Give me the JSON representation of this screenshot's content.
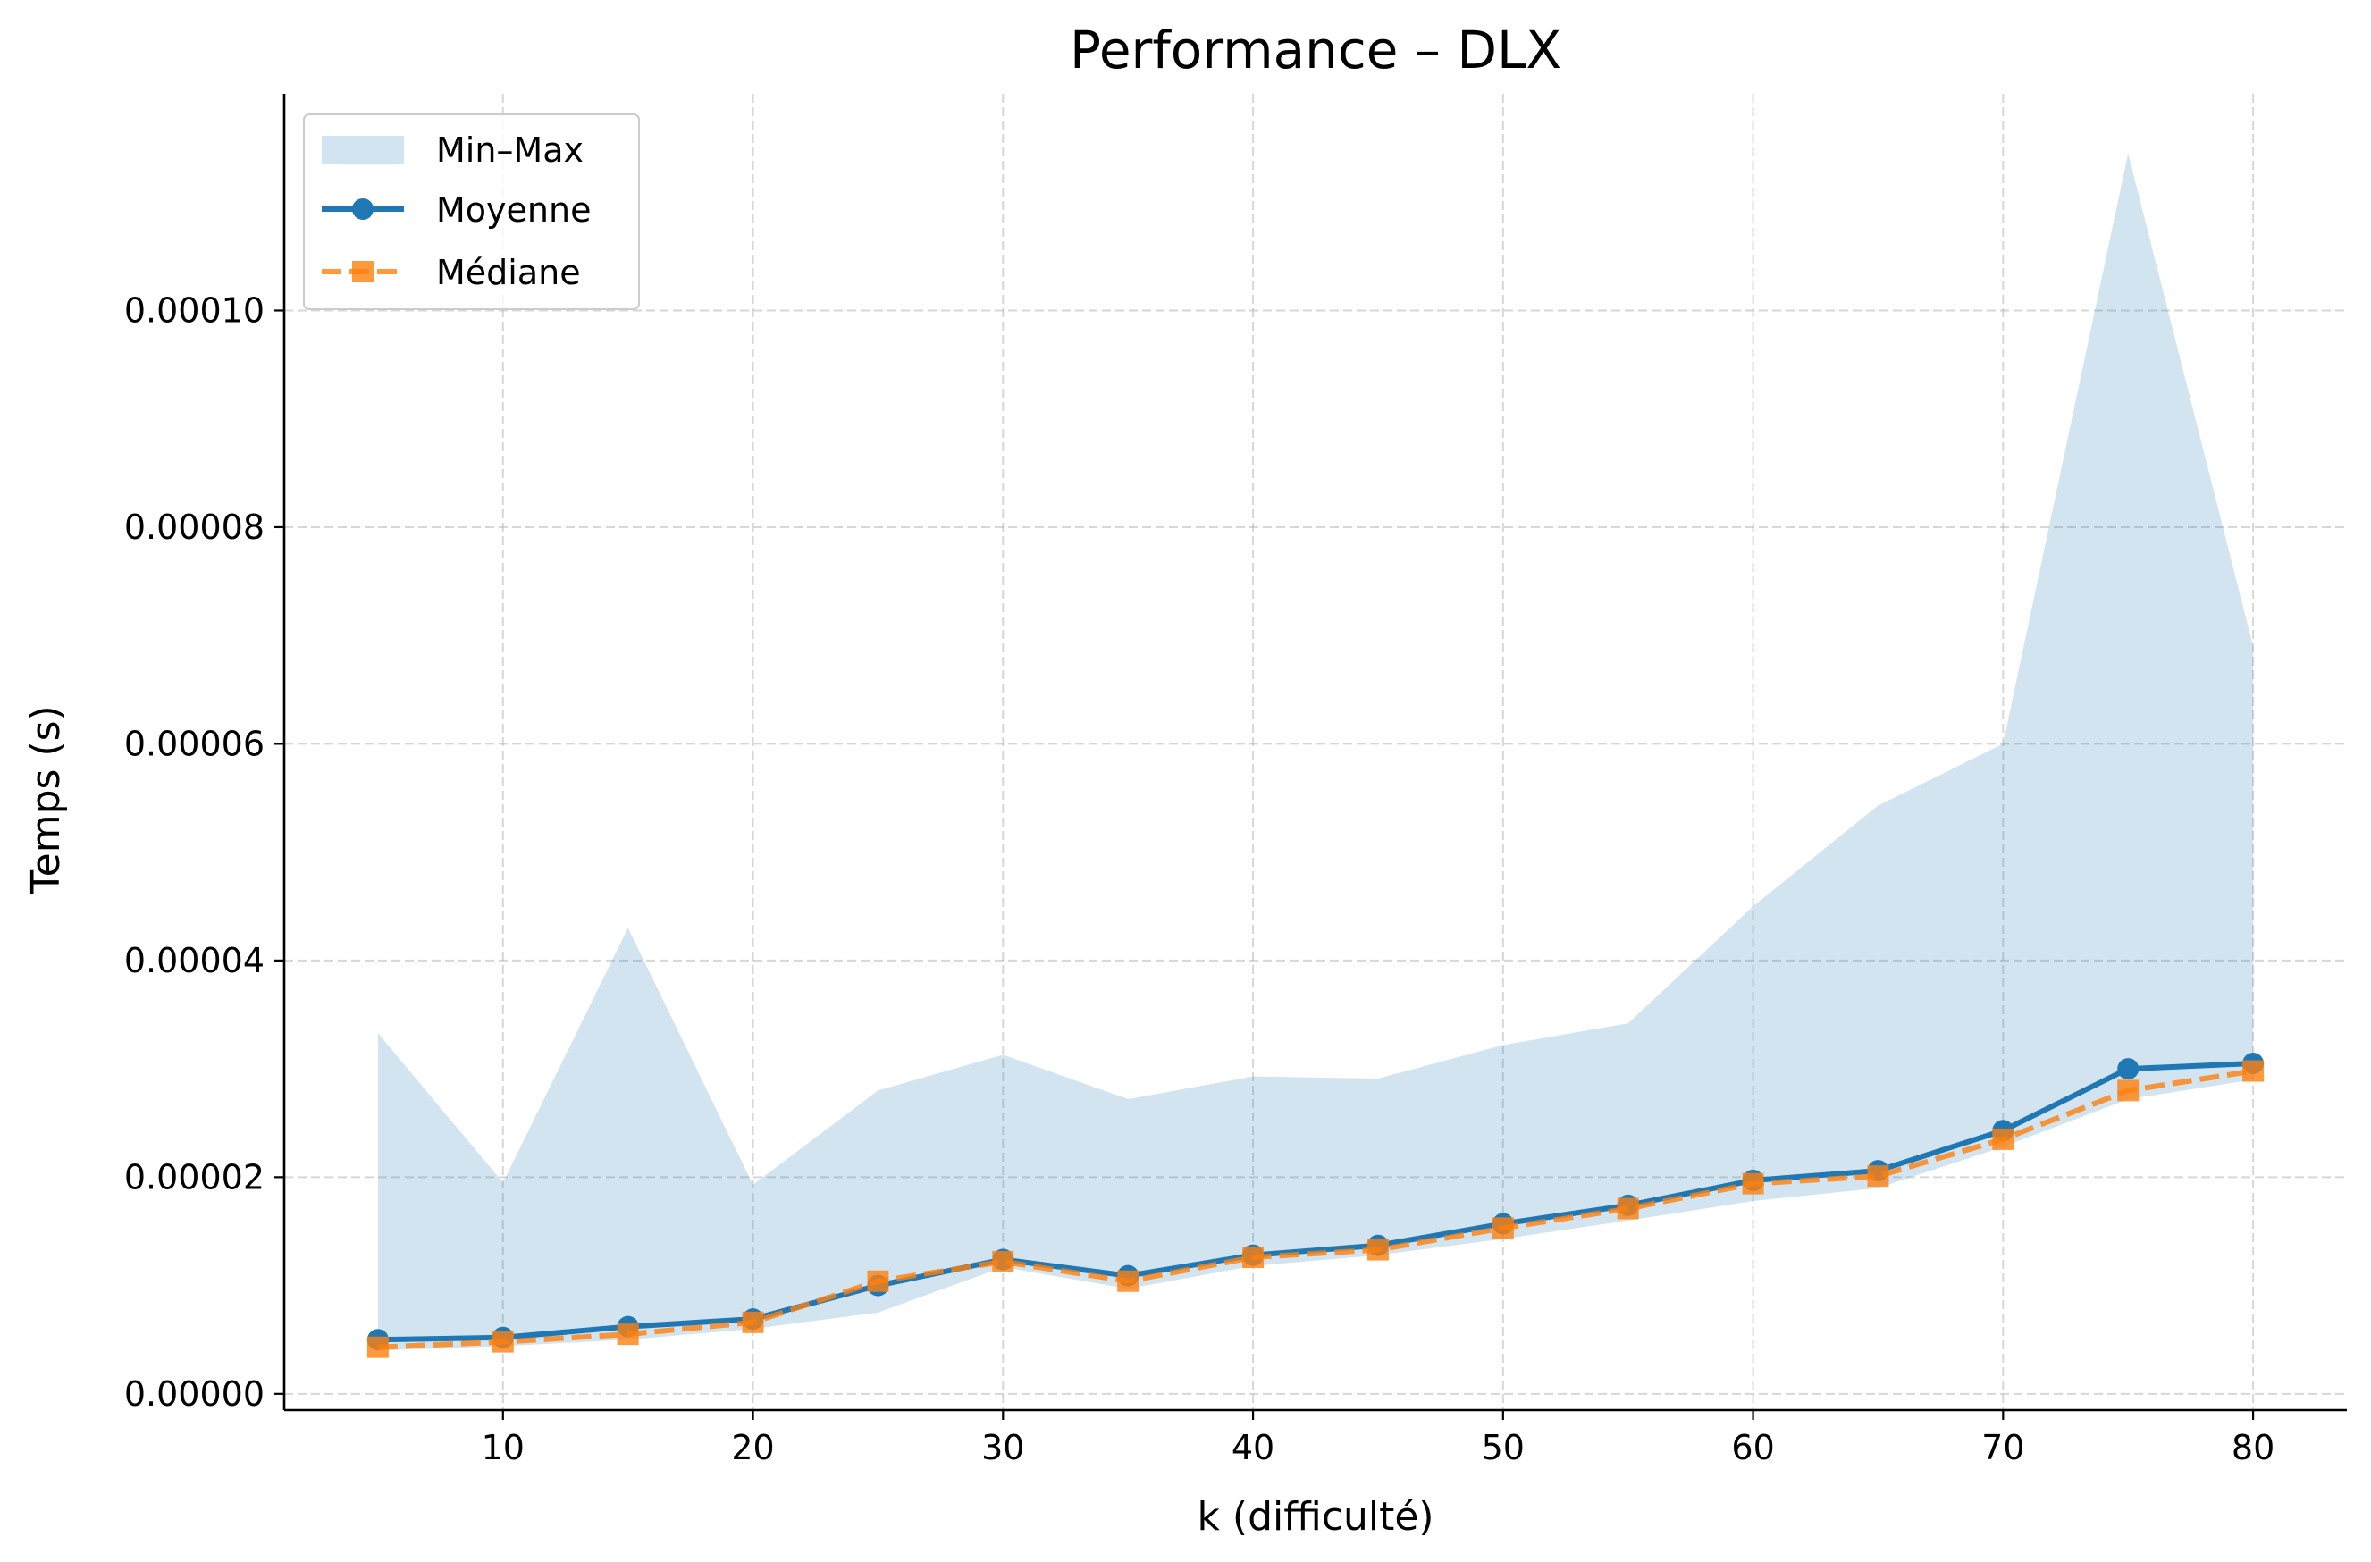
{
  "chart_data": {
    "type": "line",
    "title": "Performance – DLX",
    "xlabel": "k (difficulté)",
    "ylabel": "Temps (s)",
    "xlim": [
      1.25,
      83.75
    ],
    "ylim": [
      -1.5e-06,
      0.00012
    ],
    "x_ticks": [
      10,
      20,
      30,
      40,
      50,
      60,
      70,
      80
    ],
    "y_ticks": [
      0,
      2e-05,
      4e-05,
      6e-05,
      8e-05,
      0.0001
    ],
    "x_tick_labels": [
      "10",
      "20",
      "30",
      "40",
      "50",
      "60",
      "70",
      "80"
    ],
    "y_tick_labels": [
      "0.00000",
      "0.00002",
      "0.00004",
      "0.00006",
      "0.00008",
      "0.00010"
    ],
    "grid": true,
    "legend_position": "top-left",
    "x": [
      5,
      10,
      15,
      20,
      25,
      30,
      35,
      40,
      45,
      50,
      55,
      60,
      65,
      70,
      75,
      80
    ],
    "band": {
      "name": "Min–Max",
      "color": "#1f77b4",
      "min": [
        4e-06,
        4.4e-06,
        5e-06,
        6e-06,
        7.5e-06,
        1.17e-05,
        9.7e-06,
        1.18e-05,
        1.28e-05,
        1.43e-05,
        1.6e-05,
        1.78e-05,
        1.9e-05,
        2.28e-05,
        2.72e-05,
        2.9e-05
      ],
      "max": [
        3.33e-05,
        1.95e-05,
        4.3e-05,
        1.93e-05,
        2.8e-05,
        3.13e-05,
        2.72e-05,
        2.93e-05,
        2.91e-05,
        3.22e-05,
        3.42e-05,
        4.5e-05,
        5.43e-05,
        6e-05,
        0.0001145,
        6.9e-05
      ]
    },
    "series": [
      {
        "name": "Moyenne",
        "color": "#1f77b4",
        "marker": "circle",
        "style": "solid",
        "values": [
          5e-06,
          5.2e-06,
          6.2e-06,
          6.9e-06,
          1e-05,
          1.24e-05,
          1.09e-05,
          1.28e-05,
          1.37e-05,
          1.57e-05,
          1.74e-05,
          1.97e-05,
          2.06e-05,
          2.43e-05,
          3e-05,
          3.05e-05
        ]
      },
      {
        "name": "Médiane",
        "color": "#ff7f0e",
        "marker": "square",
        "style": "dashed",
        "values": [
          4.3e-06,
          4.8e-06,
          5.5e-06,
          6.6e-06,
          1.04e-05,
          1.22e-05,
          1.04e-05,
          1.26e-05,
          1.33e-05,
          1.53e-05,
          1.71e-05,
          1.94e-05,
          2.01e-05,
          2.35e-05,
          2.8e-05,
          2.98e-05
        ]
      }
    ]
  }
}
